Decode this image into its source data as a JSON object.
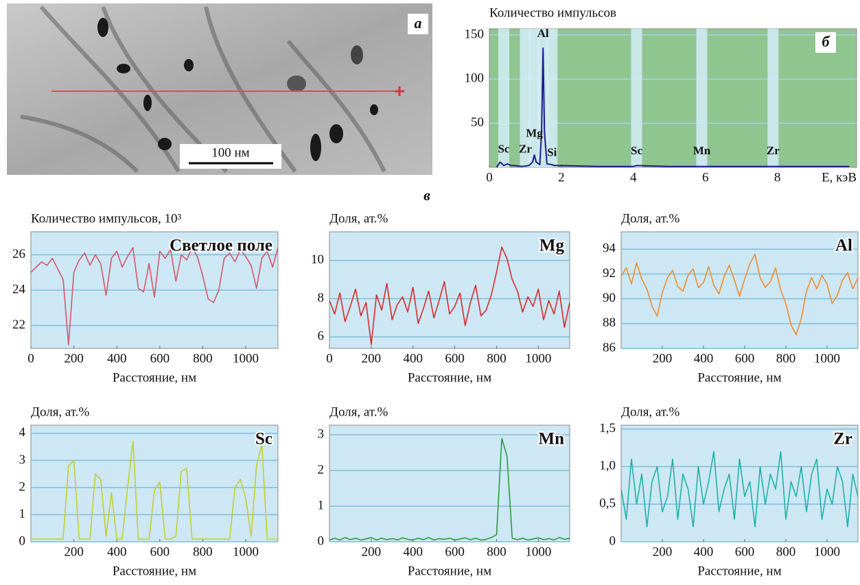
{
  "image_panel": {
    "label": "а",
    "scale_bar": "100 нм"
  },
  "section_label": "в",
  "chart_data": [
    {
      "type": "spectrum",
      "title": "Количество импульсов",
      "xlabel": "E, кэВ",
      "panel_label": "б",
      "x": [
        0.2,
        0.3,
        0.4,
        0.5,
        0.55,
        0.6,
        0.7,
        0.9,
        1.1,
        1.2,
        1.25,
        1.3,
        1.4,
        1.45,
        1.49,
        1.53,
        1.6,
        1.74,
        1.8,
        2,
        3,
        4,
        4.1,
        5,
        5.9,
        6,
        7,
        7.9,
        8,
        9,
        10
      ],
      "values": [
        0,
        6,
        2,
        4,
        3,
        2,
        2,
        1,
        2,
        6,
        14,
        6,
        3,
        40,
        135,
        40,
        4,
        3,
        2,
        2,
        1,
        1,
        2,
        1,
        1,
        1,
        1,
        1,
        1,
        1,
        1
      ],
      "color": "#1c1c8c",
      "plot_color": "#8fc58f",
      "band_color": "#d4ecf7",
      "annotations": [
        {
          "text": "Sc",
          "x": 0.4,
          "y": 12
        },
        {
          "text": "Mg",
          "x": 1.25,
          "y": 30
        },
        {
          "text": "Zr",
          "x": 1.0,
          "y": 12
        },
        {
          "text": "Al",
          "x": 1.49,
          "y": 143
        },
        {
          "text": "Si",
          "x": 1.74,
          "y": 8
        },
        {
          "text": "Sc",
          "x": 4.09,
          "y": 10
        },
        {
          "text": "Mn",
          "x": 5.9,
          "y": 10
        },
        {
          "text": "Zr",
          "x": 7.88,
          "y": 10
        }
      ],
      "xlim": [
        0,
        10.2
      ],
      "ylim": [
        0,
        157
      ],
      "xticks": [
        0,
        2,
        4,
        6,
        8
      ],
      "yticks": [
        50,
        100,
        150
      ],
      "grid": true
    },
    {
      "type": "line",
      "ylabel": "Количество импульсов, 10³",
      "xlabel": "Расстояние, нм",
      "x": [
        0,
        25,
        50,
        75,
        100,
        125,
        150,
        175,
        200,
        225,
        250,
        275,
        300,
        325,
        350,
        375,
        400,
        425,
        450,
        475,
        500,
        525,
        550,
        575,
        600,
        625,
        650,
        675,
        700,
        725,
        750,
        775,
        800,
        825,
        850,
        875,
        900,
        925,
        950,
        975,
        1000,
        1025,
        1050,
        1075,
        1100,
        1125,
        1150
      ],
      "series": [
        {
          "name": "Светлое поле",
          "color": "#d4566a",
          "values": [
            25.0,
            25.3,
            25.6,
            25.4,
            25.8,
            25.2,
            24.6,
            20.9,
            25.0,
            25.7,
            26.1,
            25.4,
            26.0,
            25.5,
            23.7,
            25.8,
            26.2,
            25.3,
            25.9,
            26.4,
            24.1,
            23.9,
            25.5,
            23.6,
            26.2,
            25.8,
            26.3,
            24.5,
            26.0,
            25.7,
            26.4,
            25.9,
            24.8,
            23.5,
            23.3,
            24.0,
            25.8,
            26.1,
            25.6,
            26.3,
            25.9,
            25.4,
            24.1,
            25.8,
            26.2,
            25.3,
            26.4
          ]
        }
      ],
      "plot_color": "#cde7f4",
      "grid_color": "#7dbfd9",
      "xlim": [
        0,
        1150
      ],
      "ylim": [
        20.7,
        27.3
      ],
      "xticks": [
        0,
        200,
        400,
        600,
        800,
        1000
      ],
      "yticks": [
        22,
        24,
        26
      ],
      "grid": true
    },
    {
      "type": "line",
      "ylabel": "Доля, ат.%",
      "xlabel": "Расстояние, нм",
      "x": [
        0,
        25,
        50,
        75,
        100,
        125,
        150,
        175,
        200,
        225,
        250,
        275,
        300,
        325,
        350,
        375,
        400,
        425,
        450,
        475,
        500,
        525,
        550,
        575,
        600,
        625,
        650,
        675,
        700,
        725,
        750,
        775,
        800,
        825,
        850,
        875,
        900,
        925,
        950,
        975,
        1000,
        1025,
        1050,
        1075,
        1100,
        1125,
        1150
      ],
      "series": [
        {
          "name": "Mg",
          "color": "#d62a2a",
          "values": [
            7.9,
            7.2,
            8.3,
            6.8,
            7.6,
            8.5,
            7.1,
            7.8,
            5.6,
            8.2,
            7.4,
            8.8,
            6.9,
            7.7,
            8.1,
            7.3,
            8.6,
            6.7,
            7.5,
            8.4,
            7.0,
            7.9,
            8.9,
            7.2,
            7.6,
            8.3,
            6.6,
            7.8,
            8.7,
            7.1,
            7.4,
            8.2,
            9.4,
            10.7,
            10.1,
            9.0,
            8.4,
            7.3,
            8.1,
            7.6,
            8.5,
            6.9,
            7.9,
            7.2,
            8.4,
            6.5,
            7.8
          ]
        }
      ],
      "plot_color": "#cde7f4",
      "grid_color": "#7dbfd9",
      "xlim": [
        0,
        1150
      ],
      "ylim": [
        5.4,
        11.5
      ],
      "xticks": [
        0,
        200,
        400,
        600,
        800,
        1000
      ],
      "yticks": [
        6,
        8,
        10
      ],
      "grid": true
    },
    {
      "type": "line",
      "ylabel": "Доля, ат.%",
      "xlabel": "Расстояние, нм",
      "x": [
        0,
        25,
        50,
        75,
        100,
        125,
        150,
        175,
        200,
        225,
        250,
        275,
        300,
        325,
        350,
        375,
        400,
        425,
        450,
        475,
        500,
        525,
        550,
        575,
        600,
        625,
        650,
        675,
        700,
        725,
        750,
        775,
        800,
        825,
        850,
        875,
        900,
        925,
        950,
        975,
        1000,
        1025,
        1050,
        1075,
        1100,
        1125,
        1150
      ],
      "series": [
        {
          "name": "Al",
          "color": "#f08c28",
          "values": [
            91.8,
            92.5,
            91.2,
            92.9,
            91.6,
            90.8,
            89.4,
            88.6,
            90.5,
            91.7,
            92.3,
            91.0,
            90.6,
            91.9,
            92.4,
            90.9,
            91.3,
            92.6,
            91.1,
            90.4,
            91.8,
            92.7,
            91.5,
            90.2,
            91.6,
            92.8,
            93.6,
            91.7,
            90.9,
            91.4,
            92.5,
            90.7,
            89.6,
            87.9,
            87.1,
            88.4,
            90.6,
            91.7,
            90.8,
            91.9,
            91.2,
            89.6,
            90.3,
            91.5,
            92.1,
            90.8,
            91.7
          ]
        }
      ],
      "plot_color": "#cde7f4",
      "grid_color": "#7dbfd9",
      "xlim": [
        0,
        1150
      ],
      "ylim": [
        86,
        95.4
      ],
      "xticks": [
        200,
        400,
        600,
        800,
        1000
      ],
      "yticks": [
        86,
        88,
        90,
        92,
        94
      ],
      "grid": true
    },
    {
      "type": "line",
      "ylabel": "Доля, ат.%",
      "xlabel": "Расстояние, нм",
      "x": [
        0,
        25,
        50,
        75,
        100,
        125,
        150,
        175,
        200,
        225,
        250,
        275,
        300,
        325,
        350,
        375,
        400,
        425,
        450,
        475,
        500,
        525,
        550,
        575,
        600,
        625,
        650,
        675,
        700,
        725,
        750,
        775,
        800,
        825,
        850,
        875,
        900,
        925,
        950,
        975,
        1000,
        1025,
        1050,
        1075,
        1100,
        1125,
        1150
      ],
      "series": [
        {
          "name": "Sc",
          "color": "#c3cf2c",
          "values": [
            0.1,
            0.1,
            0.1,
            0.1,
            0.1,
            0.1,
            0.1,
            2.8,
            3.0,
            0.1,
            0.1,
            0.1,
            2.5,
            2.3,
            0.2,
            1.8,
            0.1,
            0.1,
            2.0,
            3.7,
            0.1,
            0.1,
            0.1,
            1.9,
            2.2,
            0.1,
            0.1,
            0.2,
            2.6,
            2.7,
            0.1,
            0.1,
            0.1,
            0.1,
            0.1,
            0.1,
            0.1,
            0.1,
            2.0,
            2.3,
            1.6,
            0.2,
            2.8,
            3.6,
            0.1,
            0.1,
            0.1
          ]
        }
      ],
      "plot_color": "#cde7f4",
      "grid_color": "#7dbfd9",
      "xlim": [
        0,
        1150
      ],
      "ylim": [
        0,
        4.3
      ],
      "xticks": [
        200,
        400,
        600,
        800,
        1000
      ],
      "yticks": [
        0,
        1,
        2,
        3,
        4
      ],
      "grid": true
    },
    {
      "type": "line",
      "ylabel": "Доля, ат.%",
      "xlabel": "Расстояние, нм",
      "x": [
        0,
        25,
        50,
        75,
        100,
        125,
        150,
        175,
        200,
        225,
        250,
        275,
        300,
        325,
        350,
        375,
        400,
        425,
        450,
        475,
        500,
        525,
        550,
        575,
        600,
        625,
        650,
        675,
        700,
        725,
        750,
        775,
        800,
        825,
        850,
        875,
        900,
        925,
        950,
        975,
        1000,
        1025,
        1050,
        1075,
        1100,
        1125,
        1150
      ],
      "series": [
        {
          "name": "Mn",
          "color": "#2e9a3a",
          "values": [
            0.05,
            0.1,
            0.05,
            0.12,
            0.06,
            0.1,
            0.05,
            0.08,
            0.12,
            0.05,
            0.1,
            0.06,
            0.09,
            0.05,
            0.11,
            0.07,
            0.05,
            0.1,
            0.06,
            0.12,
            0.05,
            0.09,
            0.07,
            0.1,
            0.05,
            0.08,
            0.11,
            0.06,
            0.1,
            0.05,
            0.07,
            0.12,
            0.2,
            2.9,
            2.4,
            0.1,
            0.06,
            0.1,
            0.05,
            0.08,
            0.11,
            0.06,
            0.09,
            0.05,
            0.12,
            0.07,
            0.1
          ]
        }
      ],
      "plot_color": "#cde7f4",
      "grid_color": "#7dbfd9",
      "xlim": [
        0,
        1150
      ],
      "ylim": [
        0,
        3.27
      ],
      "xticks": [
        200,
        400,
        600,
        800,
        1000
      ],
      "yticks": [
        0,
        1,
        2,
        3
      ],
      "grid": true
    },
    {
      "type": "line",
      "ylabel": "Доля, ат.%",
      "xlabel": "Расстояние, нм",
      "x": [
        0,
        25,
        50,
        75,
        100,
        125,
        150,
        175,
        200,
        225,
        250,
        275,
        300,
        325,
        350,
        375,
        400,
        425,
        450,
        475,
        500,
        525,
        550,
        575,
        600,
        625,
        650,
        675,
        700,
        725,
        750,
        775,
        800,
        825,
        850,
        875,
        900,
        925,
        950,
        975,
        1000,
        1025,
        1050,
        1075,
        1100,
        1125,
        1150
      ],
      "series": [
        {
          "name": "Zr",
          "color": "#1fb0a6",
          "values": [
            0.7,
            0.3,
            1.1,
            0.5,
            0.9,
            0.2,
            0.8,
            1.0,
            0.4,
            0.6,
            1.1,
            0.3,
            0.9,
            0.7,
            0.2,
            1.0,
            0.5,
            0.8,
            1.2,
            0.4,
            0.7,
            0.9,
            0.3,
            1.1,
            0.6,
            0.8,
            0.2,
            1.0,
            0.5,
            0.9,
            0.7,
            1.2,
            0.3,
            0.8,
            0.6,
            1.0,
            0.4,
            0.9,
            1.1,
            0.3,
            0.7,
            0.5,
            1.0,
            0.8,
            0.2,
            0.9,
            0.6
          ]
        }
      ],
      "plot_color": "#cde7f4",
      "grid_color": "#7dbfd9",
      "xlim": [
        0,
        1150
      ],
      "ylim": [
        0,
        1.55
      ],
      "xticks": [
        200,
        400,
        600,
        800,
        1000
      ],
      "yticks": [
        0,
        {
          "value": 0.5,
          "label": "0,5"
        },
        {
          "value": 1,
          "label": "1,0"
        },
        {
          "value": 1.5,
          "label": "1,5"
        }
      ],
      "grid": true
    }
  ]
}
